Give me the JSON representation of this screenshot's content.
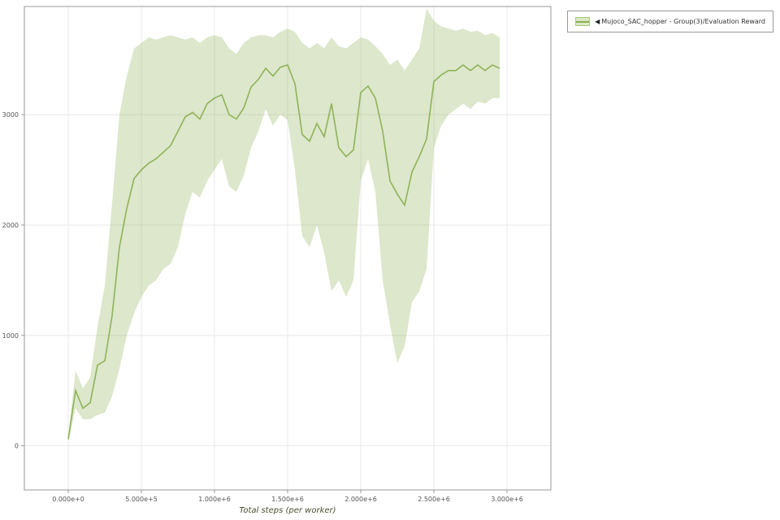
{
  "legend": {
    "marker": "◀",
    "label": "Mujoco_SAC_hopper - Group(3)/Evaluation Reward"
  },
  "colors": {
    "line": "#8ab052",
    "band_fill": "#dce9c6",
    "grid": "#e8e8e8",
    "spine": "#999999",
    "tick_label": "#555555",
    "background": "#ffffff"
  },
  "chart_data": {
    "type": "line",
    "title": "",
    "xlabel": "Total steps (per worker)",
    "ylabel": "",
    "xlim": [
      -300000,
      3300000
    ],
    "ylim": [
      -400,
      3980
    ],
    "grid": true,
    "grid_color": "#e8e8e8",
    "spine_color": "#999999",
    "band_opacity": 0.3,
    "legend_position": "top-right",
    "xticks": {
      "values": [
        0,
        500000,
        1000000,
        1500000,
        2000000,
        2500000,
        3000000
      ],
      "labels": [
        "0.000e+0",
        "5.000e+5",
        "1.000e+6",
        "1.500e+6",
        "2.000e+6",
        "2.500e+6",
        "3.000e+6"
      ]
    },
    "yticks": {
      "values": [
        0,
        1000,
        2000,
        3000
      ],
      "labels": [
        "0",
        "1000",
        "2000",
        "3000"
      ]
    },
    "series": [
      {
        "name": "Mujoco_SAC_hopper - Group(3)/Evaluation Reward",
        "color": "#8ab052",
        "x": [
          0,
          50000,
          100000,
          150000,
          200000,
          250000,
          300000,
          350000,
          400000,
          450000,
          500000,
          550000,
          600000,
          650000,
          700000,
          750000,
          800000,
          850000,
          900000,
          950000,
          1000000,
          1050000,
          1100000,
          1150000,
          1200000,
          1250000,
          1300000,
          1350000,
          1400000,
          1450000,
          1500000,
          1550000,
          1600000,
          1650000,
          1700000,
          1750000,
          1800000,
          1850000,
          1900000,
          1950000,
          2000000,
          2050000,
          2100000,
          2150000,
          2200000,
          2250000,
          2300000,
          2350000,
          2400000,
          2450000,
          2500000,
          2550000,
          2600000,
          2650000,
          2700000,
          2750000,
          2800000,
          2850000,
          2900000,
          2950000
        ],
        "y": [
          60,
          500,
          340,
          390,
          730,
          770,
          1180,
          1800,
          2150,
          2420,
          2500,
          2560,
          2600,
          2660,
          2720,
          2850,
          2980,
          3020,
          2960,
          3100,
          3150,
          3180,
          3000,
          2960,
          3060,
          3250,
          3320,
          3420,
          3350,
          3430,
          3450,
          3280,
          2820,
          2760,
          2920,
          2800,
          3100,
          2700,
          2620,
          2680,
          3200,
          3260,
          3150,
          2850,
          2400,
          2280,
          2180,
          2480,
          2620,
          2780,
          3300,
          3360,
          3400,
          3400,
          3450,
          3400,
          3450,
          3400,
          3450,
          3420
        ],
        "band_lower": [
          30,
          340,
          240,
          240,
          280,
          300,
          450,
          700,
          1000,
          1200,
          1350,
          1450,
          1500,
          1600,
          1650,
          1800,
          2100,
          2300,
          2250,
          2400,
          2500,
          2600,
          2350,
          2300,
          2450,
          2700,
          2850,
          3050,
          2900,
          3000,
          2950,
          2500,
          1900,
          1800,
          2000,
          1750,
          1400,
          1500,
          1350,
          1500,
          2400,
          2600,
          2300,
          1500,
          1100,
          750,
          900,
          1300,
          1400,
          1600,
          2700,
          2900,
          3000,
          3050,
          3100,
          3050,
          3120,
          3100,
          3150,
          3150
        ],
        "band_upper": [
          90,
          680,
          520,
          620,
          1080,
          1450,
          2200,
          3000,
          3350,
          3600,
          3650,
          3700,
          3680,
          3700,
          3720,
          3700,
          3680,
          3700,
          3650,
          3700,
          3720,
          3700,
          3600,
          3550,
          3650,
          3700,
          3720,
          3720,
          3700,
          3750,
          3780,
          3750,
          3650,
          3600,
          3650,
          3600,
          3700,
          3620,
          3600,
          3650,
          3700,
          3680,
          3620,
          3550,
          3450,
          3500,
          3400,
          3500,
          3600,
          3960,
          3850,
          3800,
          3780,
          3760,
          3780,
          3750,
          3760,
          3720,
          3740,
          3700
        ]
      }
    ]
  }
}
